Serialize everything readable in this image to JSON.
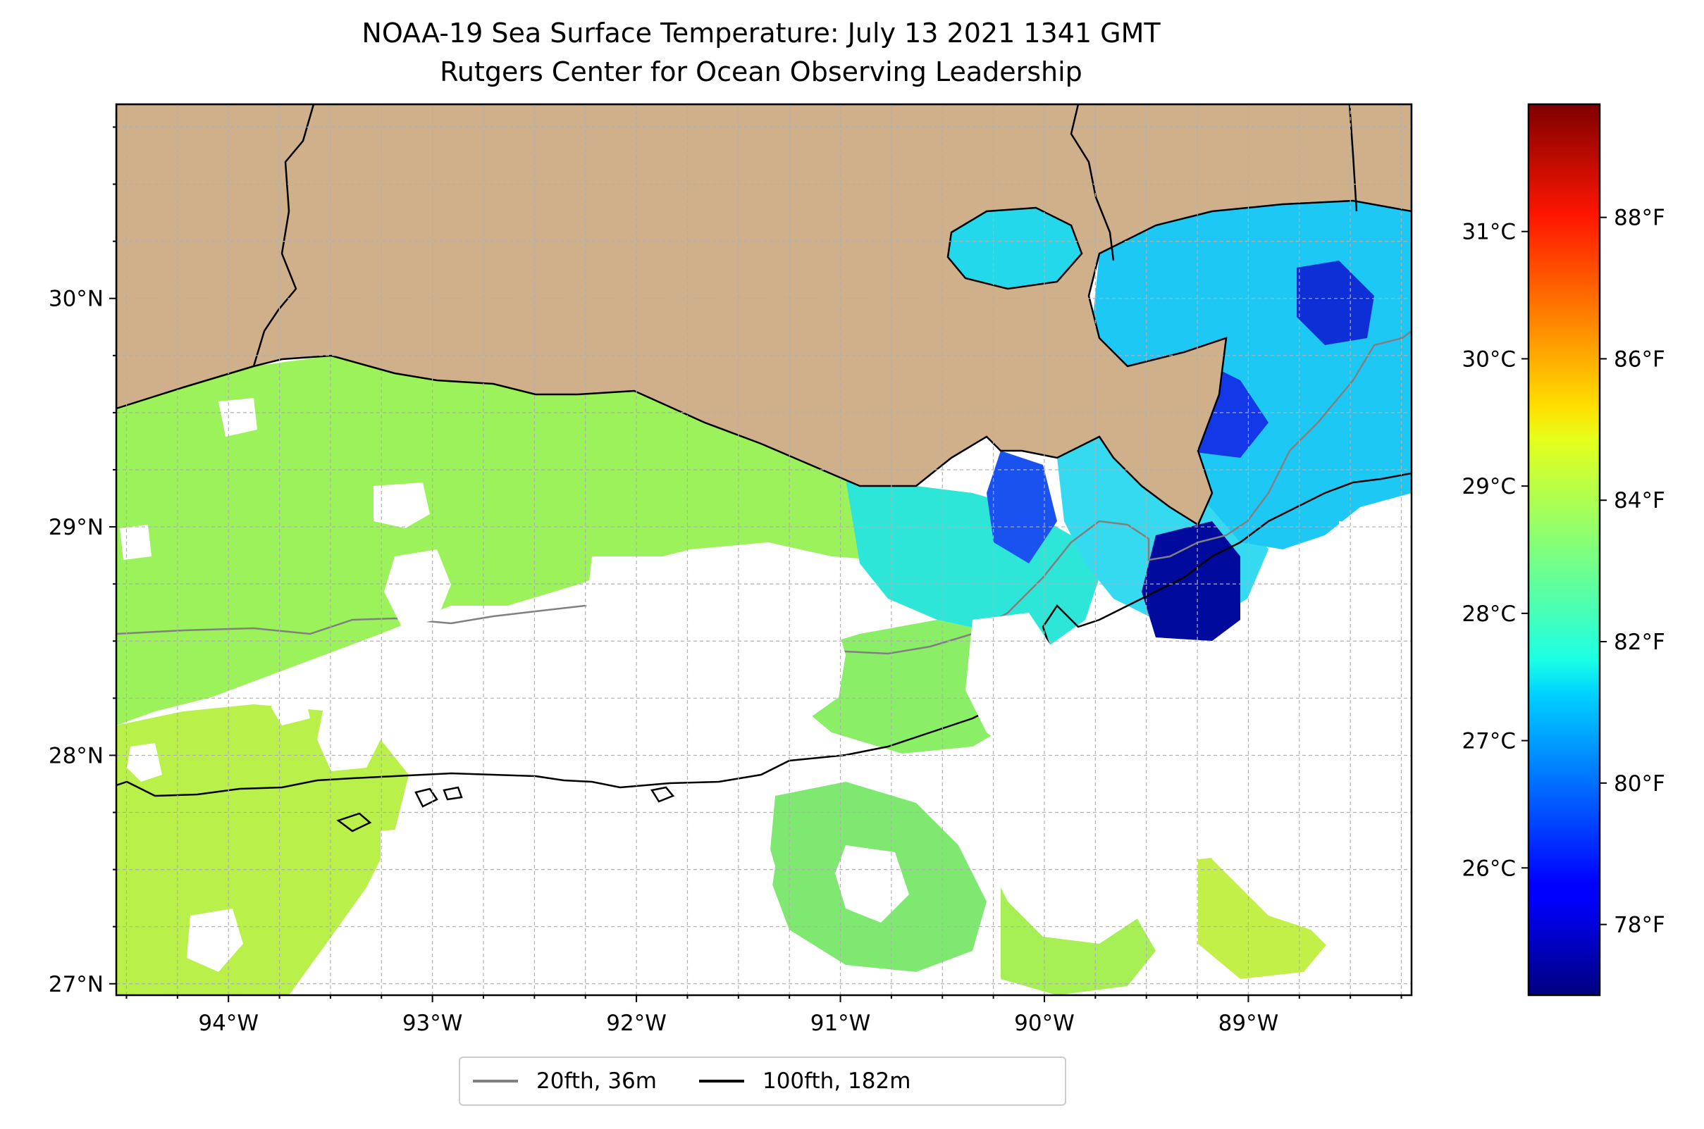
{
  "title": {
    "line1": "NOAA-19 Sea Surface Temperature: July 13 2021 1341 GMT",
    "line2": "Rutgers Center for Ocean Observing Leadership"
  },
  "map": {
    "lon_range": [
      -94.55,
      -88.2
    ],
    "lat_range": [
      26.95,
      30.85
    ],
    "lat_ticks": [
      {
        "value": 30,
        "label": "30°N"
      },
      {
        "value": 29,
        "label": "29°N"
      },
      {
        "value": 28,
        "label": "28°N"
      },
      {
        "value": 27,
        "label": "27°N"
      }
    ],
    "lon_ticks": [
      {
        "value": -94,
        "label": "94°W"
      },
      {
        "value": -93,
        "label": "93°W"
      },
      {
        "value": -92,
        "label": "92°W"
      },
      {
        "value": -91,
        "label": "91°W"
      },
      {
        "value": -90,
        "label": "90°W"
      },
      {
        "value": -89,
        "label": "89°W"
      }
    ],
    "grid": true,
    "land_color": "#cfb08a",
    "no_data_color": "#ffffff"
  },
  "colorbar": {
    "colormap": "jet",
    "celsius_range": [
      25.0,
      32.0
    ],
    "celsius_ticks": [
      {
        "value": 26,
        "label": "26°C"
      },
      {
        "value": 27,
        "label": "27°C"
      },
      {
        "value": 28,
        "label": "28°C"
      },
      {
        "value": 29,
        "label": "29°C"
      },
      {
        "value": 30,
        "label": "30°C"
      },
      {
        "value": 31,
        "label": "31°C"
      }
    ],
    "fahrenheit_ticks": [
      {
        "value": 78,
        "label": "78°F"
      },
      {
        "value": 80,
        "label": "80°F"
      },
      {
        "value": 82,
        "label": "82°F"
      },
      {
        "value": 84,
        "label": "84°F"
      },
      {
        "value": 86,
        "label": "86°F"
      },
      {
        "value": 88,
        "label": "88°F"
      }
    ]
  },
  "legend": {
    "items": [
      {
        "label": "20fth, 36m",
        "color": "#808080"
      },
      {
        "label": "100fth, 182m",
        "color": "#000000"
      }
    ]
  }
}
